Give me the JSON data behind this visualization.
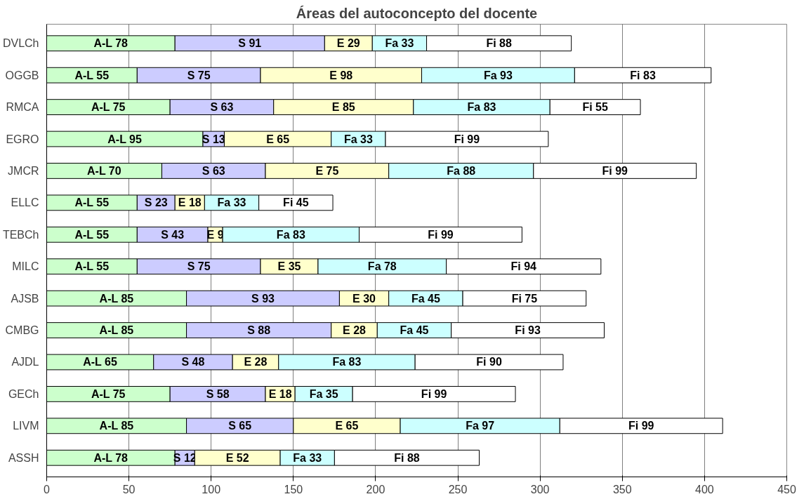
{
  "chart_data": {
    "type": "bar",
    "orientation": "horizontal",
    "stacked": true,
    "title": "Áreas del autoconcepto del docente",
    "categories": [
      "DVLCh",
      "OGGB",
      "RMCA",
      "EGRO",
      "JMCR",
      "ELLC",
      "TEBCh",
      "MILC",
      "AJSB",
      "CMBG",
      "AJDL",
      "GECh",
      "LIVM",
      "ASSH"
    ],
    "series": [
      {
        "color": "#ccffcc",
        "values": [
          78,
          55,
          75,
          95,
          70,
          55,
          55,
          55,
          85,
          85,
          65,
          75,
          85,
          78
        ],
        "value_labels": [
          "A-L 78",
          "A-L 55",
          "A-L 75",
          "A-L 95",
          "A-L 70",
          "A-L 55",
          "A-L 55",
          "A-L 55",
          "A-L 85",
          "A-L 85",
          "A-L 65",
          "A-L 75",
          "A-L 85",
          "A-L 78"
        ]
      },
      {
        "color": "#ccccff",
        "values": [
          91,
          75,
          63,
          13,
          63,
          23,
          43,
          75,
          93,
          88,
          48,
          58,
          65,
          12
        ],
        "value_labels": [
          "S 91",
          "S 75",
          "S 63",
          "S 13",
          "S 63",
          "S 23",
          "S 43",
          "S 75",
          "S 93",
          "S 88",
          "S 48",
          "S 58",
          "S 65",
          "S 12"
        ]
      },
      {
        "color": "#ffffcc",
        "values": [
          29,
          98,
          85,
          65,
          75,
          18,
          9,
          35,
          30,
          28,
          28,
          18,
          65,
          52
        ],
        "value_labels": [
          "E 29",
          "E 98",
          "E 85",
          "E 65",
          "E 75",
          "E 18",
          "E 9",
          "E 35",
          "E 30",
          "E 28",
          "E 28",
          "E 18",
          "E 65",
          "E 52"
        ]
      },
      {
        "color": "#ccffff",
        "values": [
          33,
          93,
          83,
          33,
          88,
          33,
          83,
          78,
          45,
          45,
          83,
          35,
          97,
          33
        ],
        "value_labels": [
          "Fa 33",
          "Fa 93",
          "Fa 83",
          "Fa 33",
          "Fa 88",
          "Fa 33",
          "Fa 83",
          "Fa 78",
          "Fa 45",
          "Fa 45",
          "Fa 83",
          "Fa 35",
          "Fa 97",
          "Fa 33"
        ]
      },
      {
        "color": "#ffffff",
        "values": [
          88,
          83,
          55,
          99,
          99,
          45,
          99,
          94,
          75,
          93,
          90,
          99,
          99,
          88
        ],
        "value_labels": [
          "Fi 88",
          "Fi 83",
          "Fi 55",
          "Fi 99",
          "Fi 99",
          "Fi 45",
          "Fi 99",
          "Fi 94",
          "Fi 75",
          "Fi 93",
          "Fi 90",
          "Fi 99",
          "Fi 99",
          "Fi 88"
        ]
      }
    ],
    "xlim": [
      0,
      450
    ],
    "xticks": [
      0,
      50,
      100,
      150,
      200,
      250,
      300,
      350,
      400,
      450
    ],
    "grid": "x"
  }
}
